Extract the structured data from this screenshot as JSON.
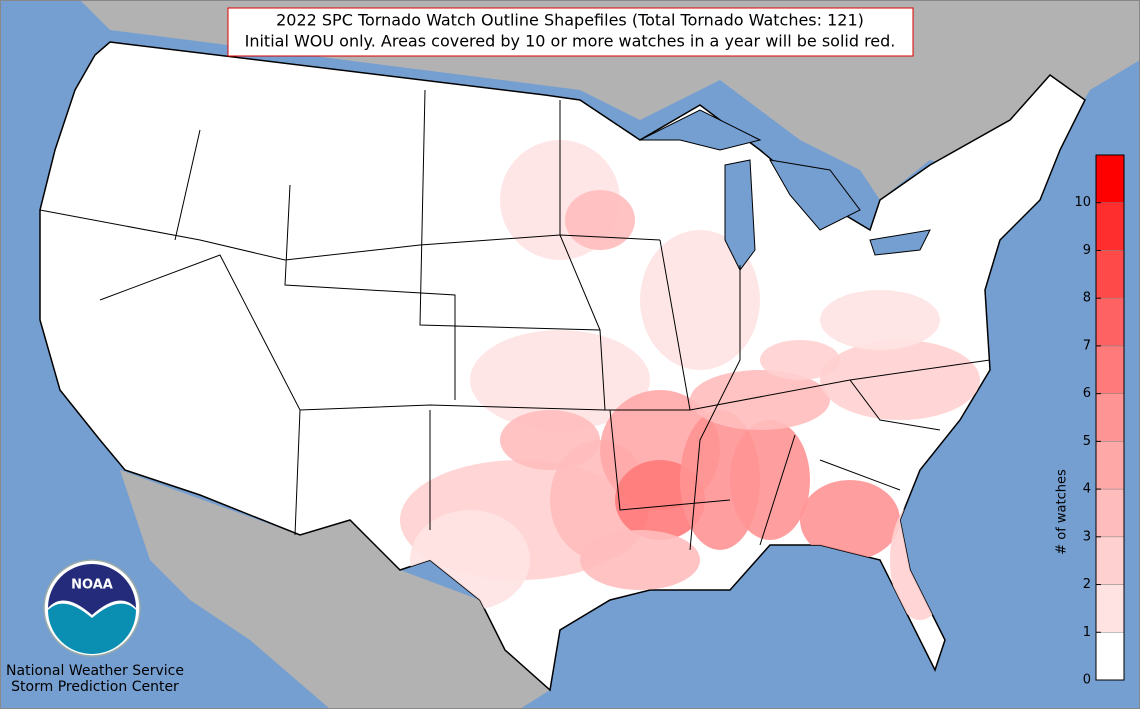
{
  "title": {
    "line1": "2022 SPC Tornado Watch Outline Shapefiles (Total Tornado Watches: 121)",
    "line2": "Initial WOU only. Areas covered by 10 or more watches in a year will be solid red."
  },
  "logo": "NOAA",
  "credit": {
    "line1": "National Weather Service",
    "line2": "Storm Prediction Center"
  },
  "colorbar": {
    "label": "# of watches",
    "range": [
      0,
      11
    ],
    "ticks": [
      0,
      1,
      2,
      3,
      4,
      5,
      6,
      7,
      8,
      9,
      10
    ],
    "colors": [
      "#ffffff",
      "#ffe3e3",
      "#ffd0d0",
      "#ffbcbc",
      "#ffa8a8",
      "#ff9494",
      "#ff7a7a",
      "#ff6262",
      "#ff4a4a",
      "#ff2e2e",
      "#ff0000"
    ]
  }
}
